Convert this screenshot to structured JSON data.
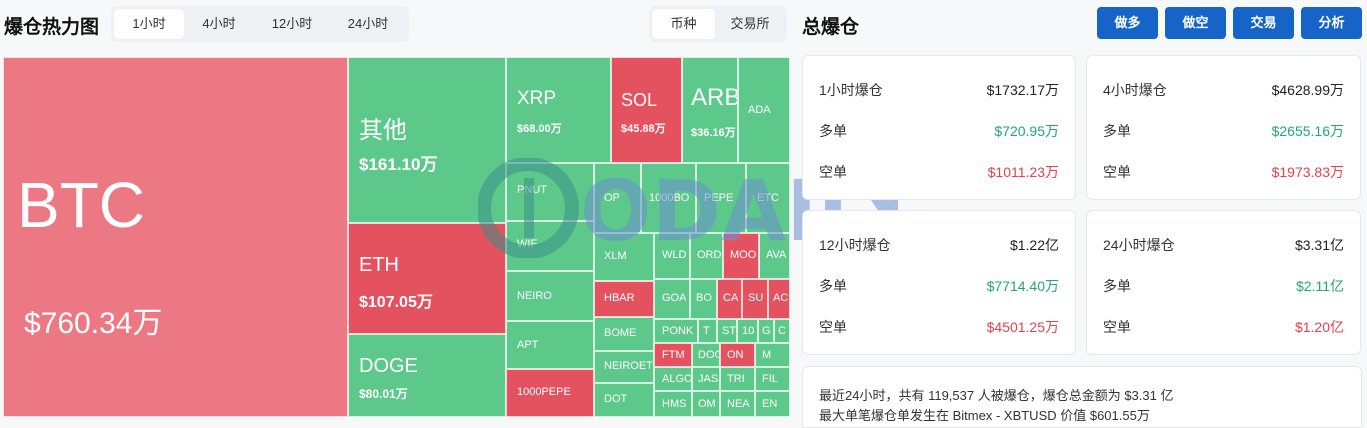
{
  "heatmap": {
    "title": "爆仓热力图",
    "time_tabs": [
      "1小时",
      "4小时",
      "12小时",
      "24小时"
    ],
    "active_tab": "1小时",
    "group_tabs": [
      "币种",
      "交易所"
    ]
  },
  "treemap": {
    "btc": {
      "name": "BTC",
      "value": "$760.34万"
    },
    "other": {
      "name": "其他",
      "value": "$161.10万"
    },
    "eth": {
      "name": "ETH",
      "value": "$107.05万"
    },
    "doge": {
      "name": "DOGE",
      "value": "$80.01万"
    },
    "xrp": {
      "name": "XRP",
      "value": "$68.00万"
    },
    "sol": {
      "name": "SOL",
      "value": "$45.88万"
    },
    "arb": {
      "name": "ARB",
      "value": "$36.16万"
    },
    "ada": {
      "name": "ADA"
    },
    "pnut": {
      "name": "PNUT"
    },
    "wif": {
      "name": "WIF"
    },
    "neiro": {
      "name": "NEIRO"
    },
    "apt": {
      "name": "APT"
    },
    "pepe1000": {
      "name": "1000PEPE"
    },
    "op": {
      "name": "OP"
    },
    "bonk1000": {
      "name": "1000BO"
    },
    "pepe": {
      "name": "PEPE"
    },
    "etc": {
      "name": "ETC"
    },
    "xlm": {
      "name": "XLM"
    },
    "wld": {
      "name": "WLD"
    },
    "ord": {
      "name": "ORD"
    },
    "moo": {
      "name": "MOO"
    },
    "ava": {
      "name": "AVA"
    },
    "hbar": {
      "name": "HBAR"
    },
    "goa": {
      "name": "GOA"
    },
    "bo": {
      "name": "BO"
    },
    "ca": {
      "name": "CA"
    },
    "su": {
      "name": "SU"
    },
    "ac": {
      "name": "AC"
    },
    "bome": {
      "name": "BOME"
    },
    "ponk": {
      "name": "PONK"
    },
    "t": {
      "name": "T"
    },
    "st": {
      "name": "ST"
    },
    "n10": {
      "name": "10"
    },
    "gg": {
      "name": "G"
    },
    "c": {
      "name": "C"
    },
    "neiroe": {
      "name": "NEIROET"
    },
    "ftm": {
      "name": "FTM"
    },
    "doo": {
      "name": "DOG"
    },
    "on": {
      "name": "ON"
    },
    "m": {
      "name": "M"
    },
    "algo": {
      "name": "ALGO"
    },
    "jas": {
      "name": "JAS"
    },
    "tr": {
      "name": "TRI"
    },
    "fil": {
      "name": "FIL"
    },
    "dot": {
      "name": "DOT"
    },
    "hms": {
      "name": "HMS"
    },
    "om": {
      "name": "OM"
    },
    "nea": {
      "name": "NEA"
    },
    "en": {
      "name": "EN"
    }
  },
  "watermark": {
    "text": "ODAILY"
  },
  "total": {
    "title": "总爆仓",
    "buttons": [
      "做多",
      "做空",
      "交易",
      "分析"
    ]
  },
  "cards": [
    {
      "period": "1小时爆仓",
      "total": "$1732.17万",
      "long_label": "多单",
      "long": "$720.95万",
      "short_label": "空单",
      "short": "$1011.23万"
    },
    {
      "period": "4小时爆仓",
      "total": "$4628.99万",
      "long_label": "多单",
      "long": "$2655.16万",
      "short_label": "空单",
      "short": "$1973.83万"
    },
    {
      "period": "12小时爆仓",
      "total": "$1.22亿",
      "long_label": "多单",
      "long": "$7714.40万",
      "short_label": "空单",
      "short": "$4501.25万"
    },
    {
      "period": "24小时爆仓",
      "total": "$3.31亿",
      "long_label": "多单",
      "long": "$2.11亿",
      "short_label": "空单",
      "short": "$1.20亿"
    }
  ],
  "summary": {
    "line1": "最近24小时，共有 119,537 人被爆仓，爆仓总金额为 $3.31 亿",
    "line2": "最大单笔爆仓单发生在 Bitmex - XBTUSD 价值 $601.55万"
  },
  "colors": {
    "long": "#5cc98a",
    "short": "#e5525f",
    "accent": "#1764c8"
  }
}
